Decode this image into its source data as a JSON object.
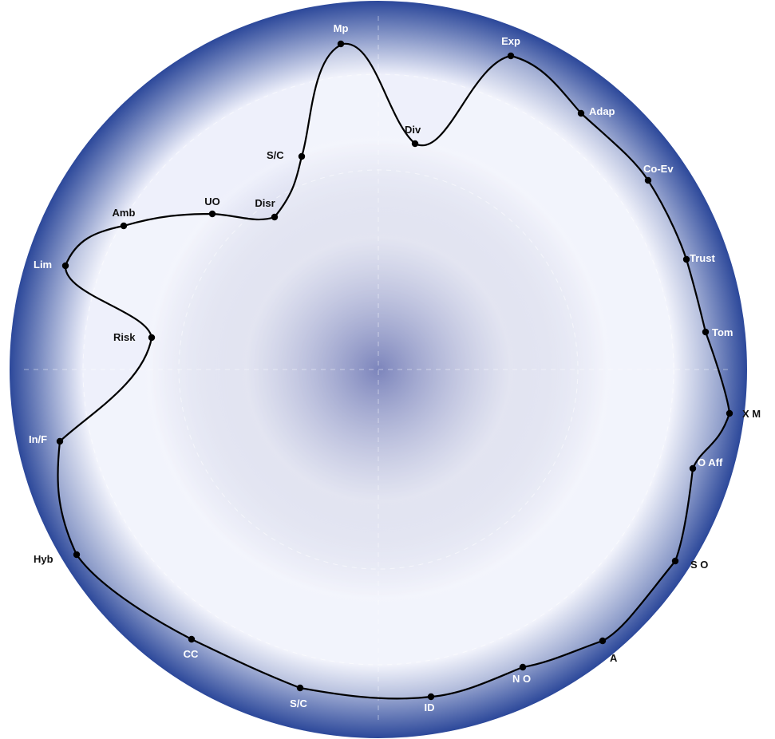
{
  "colors": {
    "disc_center": "#4a56a2",
    "disc_mid": "#eef0fb",
    "disc_edge": "#2c489a",
    "curve": "#000000"
  },
  "nodes": [
    {
      "id": "mp",
      "label": "Mp",
      "tone": "light"
    },
    {
      "id": "exp",
      "label": "Exp",
      "tone": "light"
    },
    {
      "id": "adap",
      "label": "Adap",
      "tone": "light"
    },
    {
      "id": "co-ev",
      "label": "Co-Ev",
      "tone": "light"
    },
    {
      "id": "trust",
      "label": "Trust",
      "tone": "light"
    },
    {
      "id": "tom",
      "label": "Tom",
      "tone": "light"
    },
    {
      "id": "xm",
      "label": "X M",
      "tone": "dark"
    },
    {
      "id": "o-aff",
      "label": "O Aff",
      "tone": "light"
    },
    {
      "id": "s-o",
      "label": "S O",
      "tone": "dark"
    },
    {
      "id": "a",
      "label": "A",
      "tone": "dark"
    },
    {
      "id": "n-o",
      "label": "N O",
      "tone": "light"
    },
    {
      "id": "id",
      "label": "ID",
      "tone": "light"
    },
    {
      "id": "s-c-bottom",
      "label": "S/C",
      "tone": "light"
    },
    {
      "id": "cc",
      "label": "CC",
      "tone": "light"
    },
    {
      "id": "hyb",
      "label": "Hyb",
      "tone": "dark"
    },
    {
      "id": "in-f",
      "label": "In/F",
      "tone": "light"
    },
    {
      "id": "risk",
      "label": "Risk",
      "tone": "dark"
    },
    {
      "id": "lim",
      "label": "Lim",
      "tone": "light"
    },
    {
      "id": "amb",
      "label": "Amb",
      "tone": "dark"
    },
    {
      "id": "uo",
      "label": "UO",
      "tone": "dark"
    },
    {
      "id": "disr",
      "label": "Disr",
      "tone": "dark"
    },
    {
      "id": "s-c-top",
      "label": "S/C",
      "tone": "dark"
    },
    {
      "id": "div",
      "label": "Div",
      "tone": "dark"
    }
  ]
}
